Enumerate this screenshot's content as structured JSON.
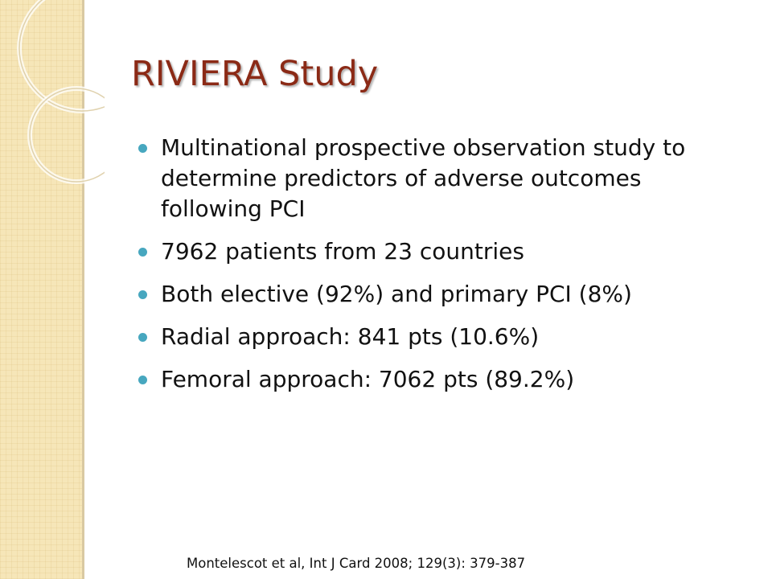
{
  "slide": {
    "title": "RIVIERA Study",
    "bullets": [
      "Multinational prospective observation study to determine predictors of adverse outcomes following PCI",
      "7962 patients from 23 countries",
      "Both elective (92%) and primary PCI (8%)",
      "Radial approach: 841 pts (10.6%)",
      "Femoral approach: 7062 pts (89.2%)"
    ],
    "citation": "Montelescot et al, Int J Card 2008; 129(3): 379-387"
  },
  "colors": {
    "title": "#8b2a16",
    "bullet_marker": "#47a7bf",
    "sidebar": "#f6e6b8"
  }
}
